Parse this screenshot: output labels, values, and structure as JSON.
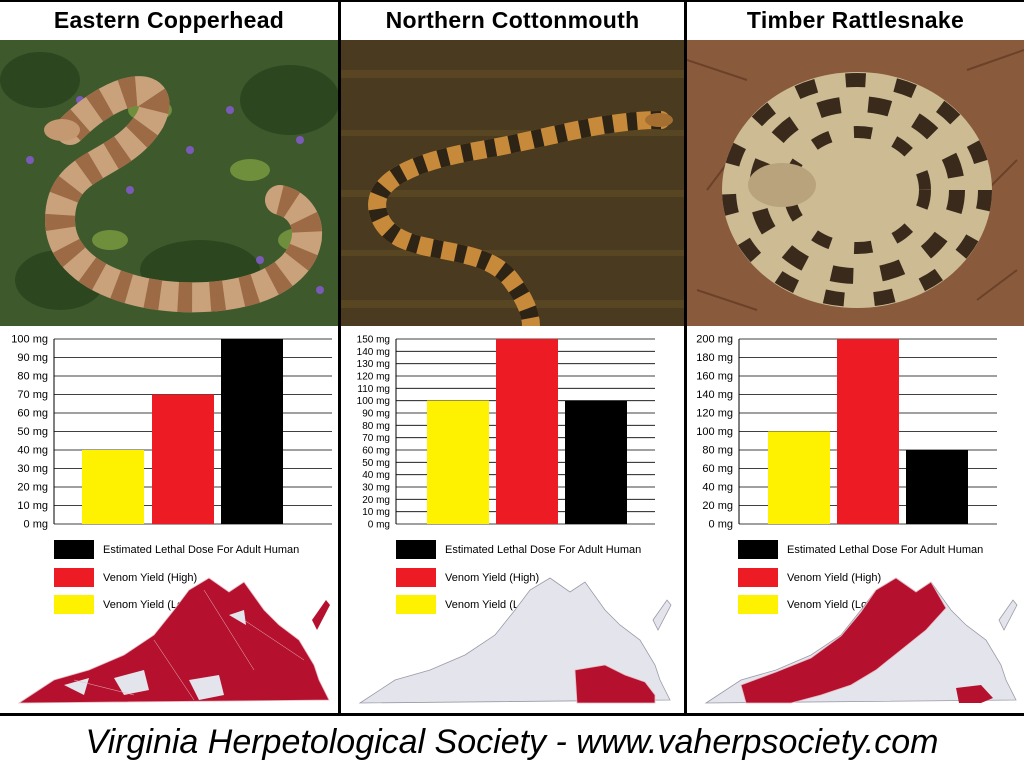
{
  "columns": [
    {
      "title": "Eastern Copperhead",
      "photo": "copperhead-photo",
      "map_color": "#b5112e"
    },
    {
      "title": "Northern Cottonmouth",
      "photo": "cottonmouth-photo",
      "map_color": "#b5112e"
    },
    {
      "title": "Timber Rattlesnake",
      "photo": "rattlesnake-photo",
      "map_color": "#b5112e"
    }
  ],
  "legend": [
    {
      "label": "Estimated Lethal Dose For Adult Human",
      "color": "#000000"
    },
    {
      "label": "Venom Yield (High)",
      "color": "#ed1c24"
    },
    {
      "label": "Venom Yield (Low)",
      "color": "#fff200"
    }
  ],
  "footer": "Virginia Herpetological Society - www.vaherpsociety.com",
  "chart_data": [
    {
      "type": "bar",
      "title": "Eastern Copperhead",
      "categories": [
        "Venom Yield (Low)",
        "Venom Yield (High)",
        "Estimated Lethal Dose For Adult Human"
      ],
      "values": [
        40,
        70,
        100
      ],
      "colors": [
        "#fff200",
        "#ed1c24",
        "#000000"
      ],
      "ylim": [
        0,
        100
      ],
      "yticks": [
        0,
        10,
        20,
        30,
        40,
        50,
        60,
        70,
        80,
        90,
        100
      ],
      "tick_suffix": " mg",
      "grid": true
    },
    {
      "type": "bar",
      "title": "Northern Cottonmouth",
      "categories": [
        "Venom Yield (Low)",
        "Venom Yield (High)",
        "Estimated Lethal Dose For Adult Human"
      ],
      "values": [
        100,
        150,
        100
      ],
      "colors": [
        "#fff200",
        "#ed1c24",
        "#000000"
      ],
      "ylim": [
        0,
        150
      ],
      "yticks": [
        0,
        10,
        20,
        30,
        40,
        50,
        60,
        70,
        80,
        90,
        100,
        110,
        120,
        130,
        140,
        150
      ],
      "tick_suffix": " mg",
      "grid": true
    },
    {
      "type": "bar",
      "title": "Timber Rattlesnake",
      "categories": [
        "Venom Yield (Low)",
        "Venom Yield (High)",
        "Estimated Lethal Dose For Adult Human"
      ],
      "values": [
        100,
        200,
        80
      ],
      "colors": [
        "#fff200",
        "#ed1c24",
        "#000000"
      ],
      "ylim": [
        0,
        200
      ],
      "yticks": [
        0,
        20,
        40,
        60,
        80,
        100,
        120,
        140,
        160,
        180,
        200
      ],
      "tick_suffix": " mg",
      "grid": true
    }
  ]
}
